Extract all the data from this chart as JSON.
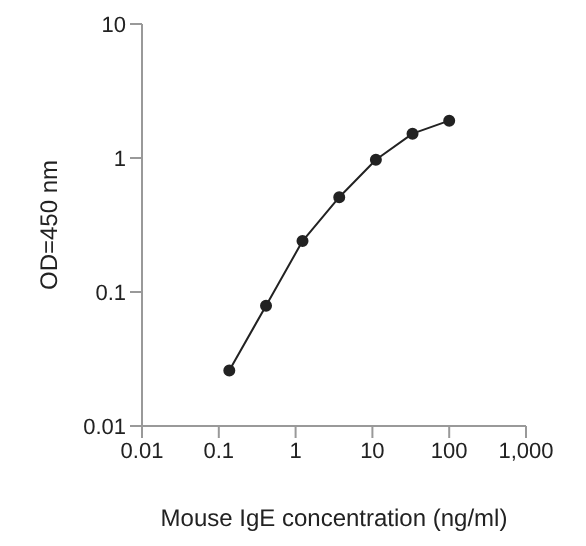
{
  "chart_data": {
    "type": "line",
    "xlabel": "Mouse IgE concentration (ng/ml)",
    "ylabel": "OD=450 nm",
    "log": "xy",
    "x": [
      0.137,
      0.412,
      1.23,
      3.7,
      11.1,
      33.3,
      100
    ],
    "series": [
      {
        "color": "#222222",
        "values": [
          0.026,
          0.079,
          0.24,
          0.51,
          0.97,
          1.52,
          1.9
        ]
      }
    ],
    "xlim": [
      0.01,
      1000
    ],
    "xticks": [
      0.01,
      0.1,
      1,
      10,
      100,
      {
        "value": 1000,
        "label": "1,000"
      }
    ],
    "ylim": [
      0.01,
      10
    ],
    "yticks": [
      0.01,
      0.1,
      1,
      10
    ],
    "marker": "circle",
    "line_style": "solid",
    "grid": false,
    "legend": false
  }
}
